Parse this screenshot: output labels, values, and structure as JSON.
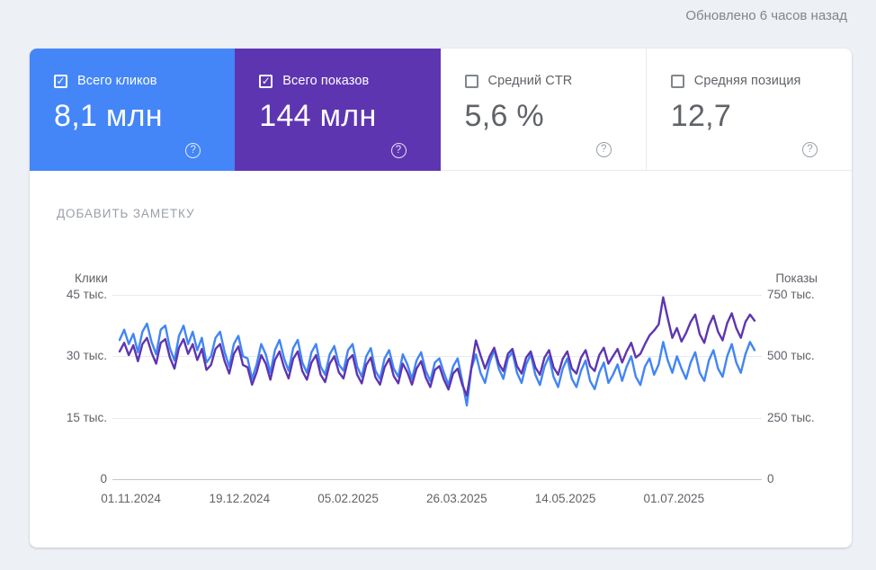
{
  "header": {
    "updated": "Обновлено 6 часов назад"
  },
  "icons": {
    "check": "✓",
    "help": "?"
  },
  "cards": [
    {
      "label": "Всего кликов",
      "value": "8,1 млн",
      "checked": true,
      "color": "#4486f8"
    },
    {
      "label": "Всего показов",
      "value": "144 млн",
      "checked": true,
      "color": "#5e35b1"
    },
    {
      "label": "Средний CTR",
      "value": "5,6 %",
      "checked": false,
      "color": "#ffffff"
    },
    {
      "label": "Средняя позиция",
      "value": "12,7",
      "checked": false,
      "color": "#ffffff"
    }
  ],
  "add_note_label": "ДОБАВИТЬ ЗАМЕТКУ",
  "chart_data": {
    "type": "line",
    "grid": true,
    "legend_position": "none",
    "left_axis": {
      "label": "Клики",
      "max": 45,
      "ticks": [
        "45 тыс.",
        "30 тыс.",
        "15 тыс.",
        "0"
      ]
    },
    "right_axis": {
      "label": "Показы",
      "max": 750,
      "ticks": [
        "750 тыс.",
        "500 тыс.",
        "250 тыс.",
        "0"
      ]
    },
    "x_ticks": [
      "01.11.2024",
      "19.12.2024",
      "05.02.2025",
      "26.03.2025",
      "14.05.2025",
      "01.07.2025"
    ],
    "series": [
      {
        "name": "Клики",
        "axis": "left",
        "unit": "тыс.",
        "color": "#4285f4",
        "values": [
          34,
          36.5,
          33,
          35.5,
          31,
          36,
          38,
          33.5,
          30.5,
          36.5,
          37.5,
          32,
          29,
          35,
          37.5,
          33,
          36,
          31.5,
          34.5,
          28.5,
          30,
          34.5,
          36,
          31,
          27.5,
          33,
          35,
          30,
          29.5,
          24.5,
          28,
          33,
          30.5,
          26,
          31.5,
          34,
          29.5,
          26.5,
          32,
          34,
          28.5,
          26,
          31,
          33,
          27.5,
          25.5,
          30.5,
          32.5,
          28,
          26.5,
          31.5,
          33,
          27.5,
          25,
          30,
          32,
          26.5,
          24.5,
          29.5,
          31.5,
          27,
          25,
          30.5,
          28,
          24.5,
          29,
          31,
          26.5,
          24,
          28.5,
          29.5,
          26,
          23,
          27.5,
          29.5,
          24,
          18,
          27,
          30.5,
          26,
          23.5,
          28.5,
          31.5,
          27,
          24.5,
          29.5,
          31,
          26,
          23.5,
          28,
          30.5,
          25.5,
          23,
          27.5,
          30,
          25,
          22.5,
          27,
          29.5,
          24.5,
          22.5,
          26.5,
          29,
          24,
          22,
          26,
          28.5,
          23.5,
          25.5,
          28,
          24,
          27.5,
          30,
          25,
          23,
          27.5,
          29.5,
          25.5,
          28,
          33.5,
          29,
          26,
          30,
          27,
          24.5,
          28.5,
          31,
          26,
          24,
          29,
          31.5,
          27,
          25,
          30,
          33,
          28.5,
          26,
          30.5,
          33.5,
          31.5
        ]
      },
      {
        "name": "Показы",
        "axis": "right",
        "unit": "тыс.",
        "color": "#5e35b1",
        "values": [
          520,
          555,
          505,
          545,
          480,
          550,
          575,
          515,
          470,
          555,
          570,
          495,
          450,
          535,
          570,
          510,
          550,
          485,
          530,
          445,
          465,
          530,
          550,
          480,
          430,
          510,
          540,
          465,
          455,
          385,
          435,
          505,
          470,
          405,
          485,
          520,
          455,
          410,
          490,
          520,
          440,
          405,
          475,
          505,
          425,
          395,
          470,
          500,
          435,
          410,
          485,
          505,
          425,
          390,
          465,
          495,
          415,
          385,
          455,
          490,
          420,
          390,
          470,
          435,
          385,
          450,
          480,
          415,
          375,
          445,
          460,
          405,
          365,
          430,
          450,
          385,
          340,
          455,
          565,
          505,
          450,
          500,
          535,
          470,
          440,
          510,
          530,
          460,
          430,
          495,
          520,
          455,
          425,
          495,
          525,
          455,
          425,
          490,
          520,
          450,
          430,
          495,
          525,
          460,
          440,
          505,
          535,
          470,
          500,
          530,
          475,
          520,
          555,
          495,
          510,
          550,
          585,
          605,
          630,
          740,
          655,
          575,
          615,
          560,
          595,
          640,
          670,
          590,
          555,
          625,
          665,
          600,
          565,
          635,
          675,
          615,
          575,
          640,
          670,
          645
        ]
      }
    ]
  }
}
